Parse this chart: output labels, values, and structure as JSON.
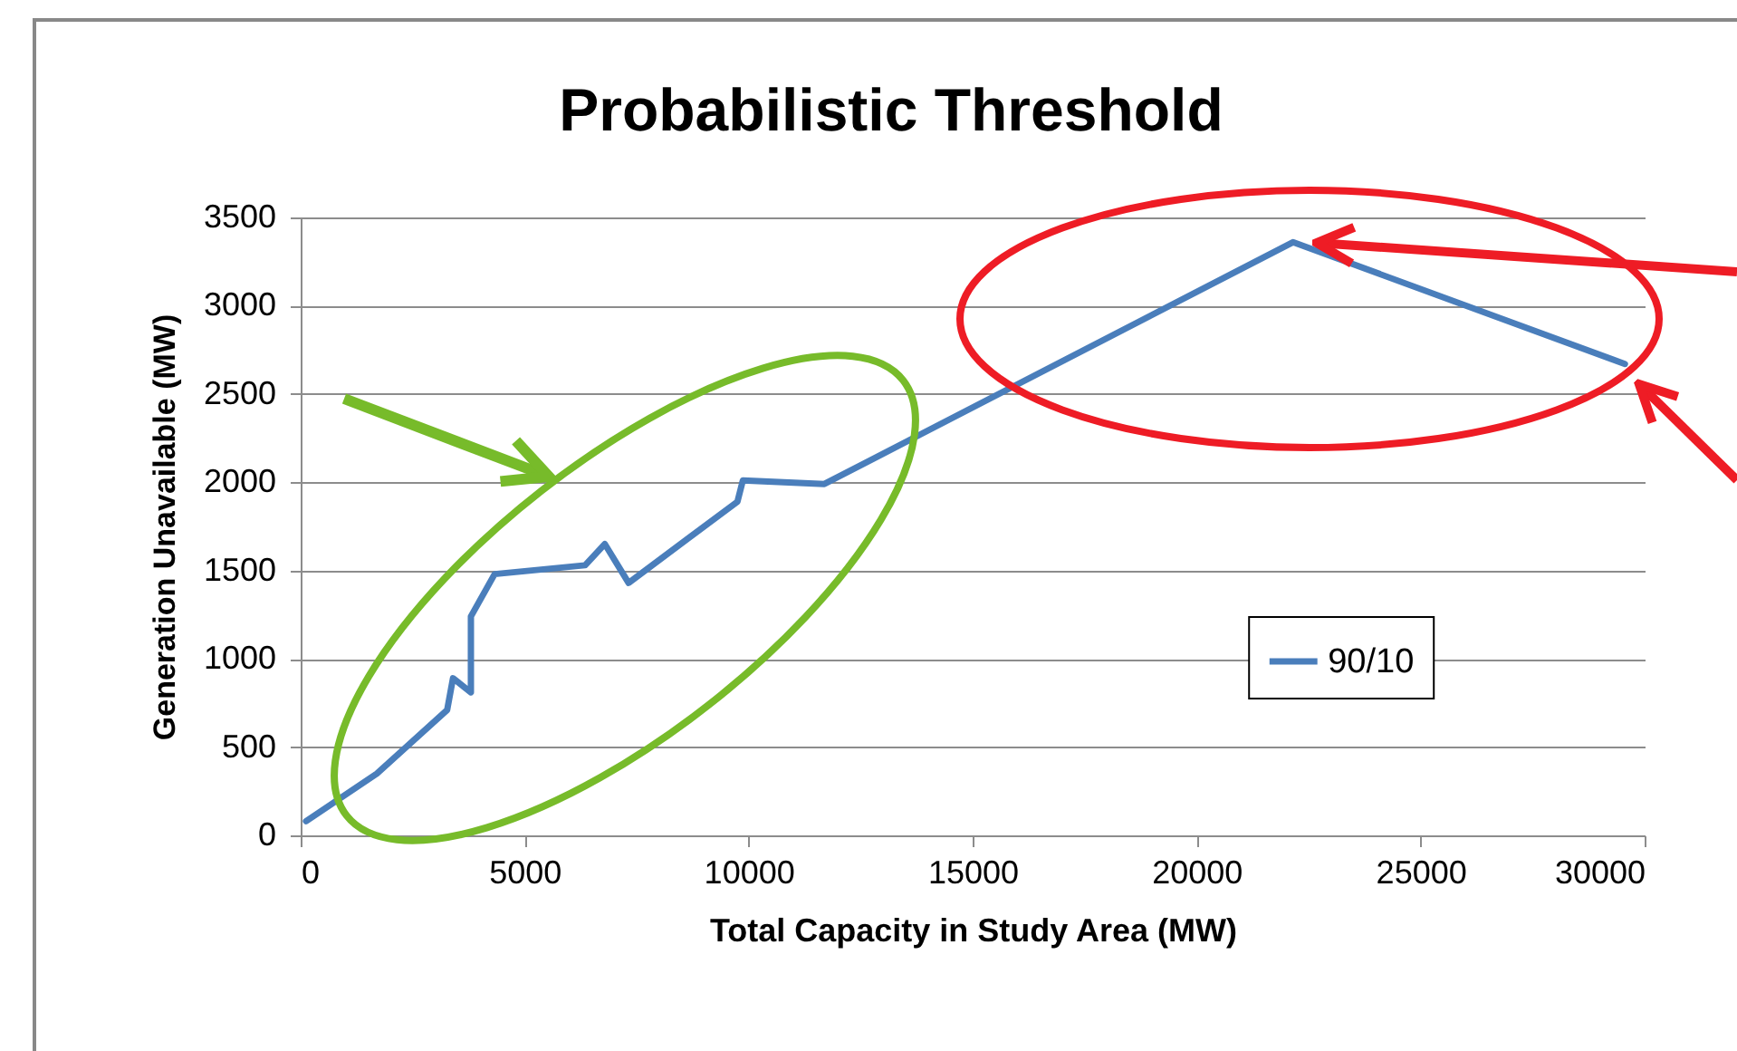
{
  "chart_data": {
    "type": "line",
    "title": "Probabilistic Threshold",
    "xlabel": "Total Capacity in Study Area (MW)",
    "ylabel": "Generation Unavailable (MW)",
    "x": [
      120,
      1700,
      3270,
      3400,
      3800,
      3800,
      4330,
      6350,
      6790,
      7320,
      9750,
      9870,
      11690,
      22150,
      29560
    ],
    "series": [
      {
        "name": "90/10",
        "color": "#4a7ebb",
        "values": [
          80,
          350,
          710,
          890,
          810,
          1240,
          1480,
          1530,
          1650,
          1430,
          1890,
          2010,
          1990,
          3360,
          2670
        ]
      }
    ],
    "xlim": [
      0,
      30000
    ],
    "xticks": [
      0,
      5000,
      10000,
      15000,
      20000,
      25000,
      30000
    ],
    "ylim": [
      0,
      3500
    ],
    "yticks": [
      0,
      500,
      1000,
      1500,
      2000,
      2500,
      3000,
      3500
    ],
    "grid": "y",
    "legend": "right",
    "marker": "none",
    "line_style": "solid"
  }
}
